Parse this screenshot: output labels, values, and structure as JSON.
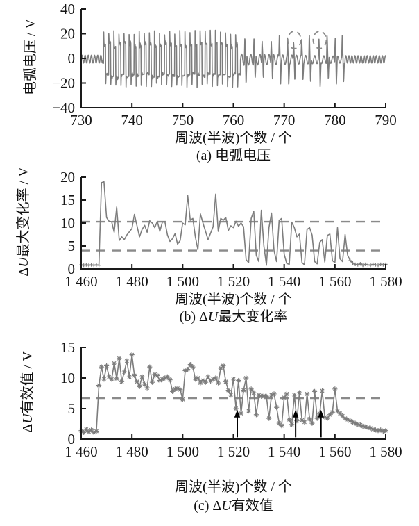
{
  "figure": {
    "bg_color": "#ffffff",
    "series_color": "#7d7d7d",
    "dashed_color": "#8a8a8a",
    "axis_color": "#1a1a1a",
    "arrow_color": "#000000"
  },
  "chart_data": [
    {
      "id": "a",
      "type": "line",
      "caption": "(a) 电弧电压",
      "ylabel": "电弧电压 / V",
      "xlabel": "周波(半波)个数 / 个",
      "xlim": [
        730,
        790
      ],
      "ylim": [
        -40,
        40
      ],
      "x_tick_values": [
        730,
        740,
        750,
        760,
        770,
        780,
        790
      ],
      "x_tick_labels": [
        "730",
        "740",
        "750",
        "760",
        "770",
        "780",
        "790"
      ],
      "y_tick_values": [
        40,
        20,
        0,
        -20,
        -40
      ],
      "y_tick_labels": [
        "40",
        "20",
        "0",
        "−20",
        "−40"
      ],
      "waveform_segments": [
        {
          "type": "sine",
          "x0": 730,
          "x1": 734.4,
          "amplitude": 3.2,
          "period": 0.62,
          "offset": -0.6
        },
        {
          "type": "arc",
          "x0": 734.4,
          "x1": 761.4,
          "period": 1.0,
          "pos_peak": 21,
          "pos_plateau": 11.5,
          "neg_peak": -22,
          "neg_plateau": -14
        },
        {
          "type": "intermittent",
          "x0": 761.4,
          "x1": 782,
          "amplitude": 4.6,
          "period": 0.9,
          "offset": -1,
          "spike_xs": [
            762.4,
            764.2,
            765.8,
            767.6,
            769.2,
            770.8,
            772.0,
            773.6,
            775.1,
            777.0,
            778.6,
            780.2,
            781.6
          ],
          "spike_pos": 19,
          "spike_neg": -21
        },
        {
          "type": "sine",
          "x0": 782,
          "x1": 790,
          "amplitude": 3.0,
          "period": 0.6,
          "offset": -0.8
        }
      ],
      "dashed_circles": [
        {
          "x": 772,
          "y": 15,
          "rx": 1.3,
          "ry": 7
        },
        {
          "x": 777,
          "y": 15,
          "rx": 1.3,
          "ry": 7
        }
      ]
    },
    {
      "id": "b",
      "type": "line",
      "caption_prefix": "(b) Δ",
      "caption_italic": "U",
      "caption_suffix": "最大变化率",
      "ylabel_prefix": "Δ",
      "ylabel_italic": "U",
      "ylabel_suffix": "最大变化率 / V",
      "xlabel": "周波(半波)个数 / 个",
      "xlim": [
        1460,
        1580
      ],
      "ylim": [
        0,
        20
      ],
      "x_tick_values": [
        1460,
        1480,
        1500,
        1520,
        1540,
        1560,
        1580
      ],
      "x_tick_labels": [
        "1 460",
        "1 480",
        "1 500",
        "1 520",
        "1 540",
        "1 560",
        "1 580"
      ],
      "y_tick_values": [
        0,
        5,
        10,
        15,
        20
      ],
      "y_tick_labels": [
        "0",
        "5",
        "10",
        "15",
        "20"
      ],
      "thresholds": [
        10.3,
        4.0
      ],
      "x_start": 1460,
      "x_step": 1,
      "plus_marker_ranges": [
        [
          1460,
          1467
        ],
        [
          1566,
          1580
        ]
      ],
      "values": [
        0.9,
        0.8,
        0.9,
        0.8,
        0.9,
        0.8,
        0.9,
        0.8,
        18.8,
        19.0,
        11.2,
        10.4,
        10.3,
        8.0,
        13.5,
        6.2,
        7.0,
        6.4,
        7.4,
        8.1,
        8.8,
        11.9,
        9.4,
        7.0,
        8.6,
        9.5,
        8.0,
        10.5,
        10.0,
        9.0,
        10.4,
        8.2,
        10.2,
        10.3,
        7.4,
        6.0,
        6.6,
        7.7,
        5.4,
        6.2,
        10.0,
        9.6,
        16.0,
        10.6,
        11.0,
        7.0,
        4.2,
        12.0,
        10.0,
        8.2,
        6.4,
        7.8,
        9.2,
        16.3,
        8.2,
        11.0,
        10.6,
        11.2,
        8.4,
        9.4,
        9.0,
        10.4,
        9.3,
        10.0,
        9.2,
        2.0,
        1.4,
        11.0,
        12.6,
        3.0,
        1.6,
        12.8,
        5.0,
        0.8,
        9.0,
        12.2,
        4.0,
        1.6,
        10.6,
        11.0,
        3.2,
        1.2,
        1.0,
        10.2,
        9.0,
        7.0,
        7.6,
        1.4,
        0.9,
        8.6,
        9.0,
        7.4,
        1.6,
        1.1,
        5.8,
        6.4,
        1.5,
        7.3,
        7.6,
        1.8,
        1.4,
        9.0,
        2.2,
        1.6,
        7.5,
        3.0,
        1.8,
        1.3,
        1.0,
        0.9,
        1.1,
        0.8,
        1.0,
        0.9,
        0.8,
        1.0,
        0.9,
        0.8,
        1.0,
        0.9,
        1.0
      ]
    },
    {
      "id": "c",
      "type": "line",
      "caption_prefix": "(c) Δ",
      "caption_italic": "U",
      "caption_suffix": "有效值",
      "ylabel_prefix": "Δ",
      "ylabel_italic": "U",
      "ylabel_suffix": "有效值 / V",
      "xlabel": "周波(半波)个数 / 个",
      "xlim": [
        1460,
        1580
      ],
      "ylim": [
        0,
        15
      ],
      "x_tick_values": [
        1460,
        1480,
        1500,
        1520,
        1540,
        1560,
        1580
      ],
      "x_tick_labels": [
        "1 460",
        "1 480",
        "1 500",
        "1 520",
        "1 540",
        "1 560",
        "1 580"
      ],
      "y_tick_values": [
        0,
        5,
        10,
        15
      ],
      "y_tick_labels": [
        "0",
        "5",
        "10",
        "15"
      ],
      "thresholds": [
        6.7
      ],
      "marker": "asterisk",
      "arrows_x": [
        1521.5,
        1544.5,
        1554.5
      ],
      "arrow_y_range": [
        0.3,
        4.8
      ],
      "x_start": 1460,
      "x_step": 1,
      "values": [
        1.4,
        1.1,
        1.6,
        1.2,
        1.5,
        1.1,
        1.3,
        8.8,
        11.8,
        9.8,
        12.0,
        10.2,
        9.8,
        12.4,
        9.9,
        13.2,
        9.4,
        11.0,
        12.8,
        10.2,
        13.8,
        10.4,
        9.4,
        8.6,
        10.2,
        9.0,
        8.4,
        11.8,
        9.3,
        10.6,
        10.4,
        9.6,
        9.8,
        10.0,
        10.2,
        9.7,
        7.8,
        8.2,
        8.3,
        8.1,
        6.5,
        11.2,
        11.4,
        12.2,
        11.8,
        9.8,
        10.0,
        9.2,
        9.6,
        9.3,
        10.2,
        9.5,
        9.8,
        10.0,
        9.2,
        11.6,
        12.0,
        9.4,
        8.0,
        7.2,
        9.8,
        5.0,
        9.6,
        4.2,
        8.0,
        10.0,
        4.6,
        8.2,
        7.6,
        4.0,
        7.2,
        7.0,
        7.1,
        7.0,
        3.4,
        7.2,
        7.4,
        5.2,
        2.6,
        2.2,
        6.8,
        7.4,
        3.2,
        2.4,
        7.2,
        3.0,
        7.6,
        3.1,
        2.8,
        7.4,
        3.3,
        2.6,
        7.8,
        3.4,
        4.2,
        7.9,
        3.6,
        3.4,
        4.0,
        4.4,
        8.2,
        4.6,
        4.2,
        3.8,
        3.4,
        3.2,
        3.0,
        2.8,
        2.6,
        2.4,
        2.3,
        2.1,
        2.0,
        1.9,
        1.8,
        1.6,
        1.5,
        1.4,
        1.5,
        1.3,
        1.4
      ]
    }
  ]
}
